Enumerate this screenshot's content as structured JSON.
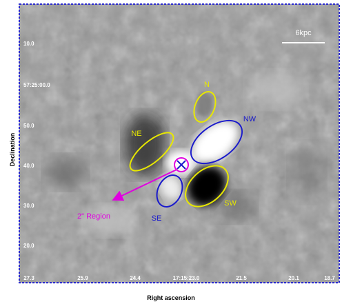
{
  "axes": {
    "ylabel": "Declination",
    "xlabel": "Right ascension",
    "y_ticks": [
      "10.0",
      "57:25:00.0",
      "50.0",
      "40.0",
      "30.0",
      "20.0"
    ],
    "x_ticks": [
      "27.3",
      "25.9",
      "24.4",
      "17:15:23.0",
      "21.5",
      "20.1",
      "18.7"
    ]
  },
  "scale_bar": {
    "label": "6kpc"
  },
  "regions": [
    {
      "label": "N",
      "color": "#e8e800"
    },
    {
      "label": "NE",
      "color": "#e8e800"
    },
    {
      "label": "NW",
      "color": "#1a1acc"
    },
    {
      "label": "SE",
      "color": "#1a1acc"
    },
    {
      "label": "SW",
      "color": "#e8e800"
    }
  ],
  "annotation": {
    "label": "2\" Region",
    "color": "#e000e0"
  },
  "colors": {
    "frame": "#2a2ad0",
    "tick_text": "#ffffff"
  }
}
